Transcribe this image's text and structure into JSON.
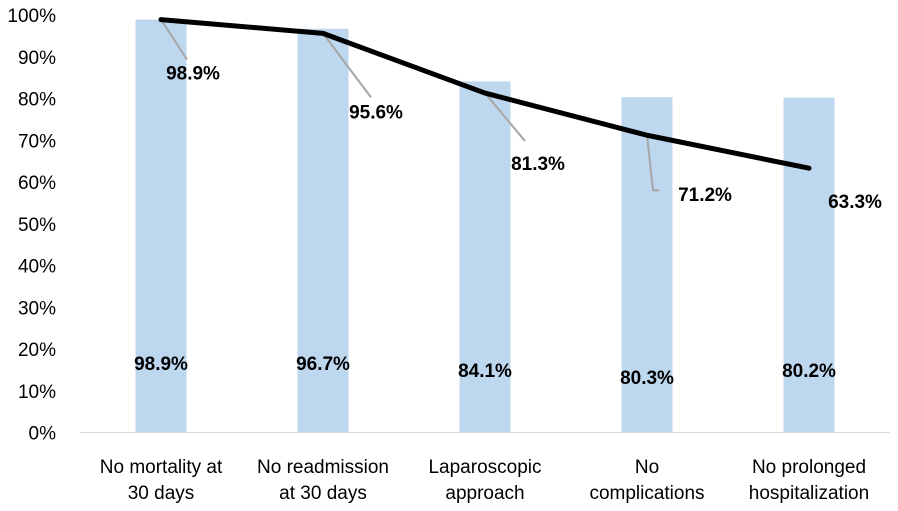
{
  "chart_data": {
    "type": "bar",
    "categories": [
      [
        "No mortality at",
        "30 days"
      ],
      [
        "No readmission",
        "at 30 days"
      ],
      [
        "Laparoscopic",
        "approach"
      ],
      [
        "No",
        "complications"
      ],
      [
        "No prolonged",
        "hospitalization"
      ]
    ],
    "series": [
      {
        "type": "bar",
        "values": [
          98.9,
          96.7,
          84.1,
          80.3,
          80.2
        ],
        "data_labels": [
          "98.9%",
          "96.7%",
          "84.1%",
          "80.3%",
          "80.2%"
        ],
        "color": "#bdd7ee"
      },
      {
        "type": "line",
        "values": [
          98.9,
          95.6,
          81.3,
          71.2,
          63.3
        ],
        "data_labels": [
          "98.9%",
          "95.6%",
          "81.3%",
          "71.2%",
          "63.3%"
        ],
        "color": "#000000"
      }
    ],
    "y_ticks": [
      "0%",
      "10%",
      "20%",
      "30%",
      "40%",
      "50%",
      "60%",
      "70%",
      "80%",
      "90%",
      "100%"
    ],
    "ylim": [
      0,
      100
    ],
    "grid": false,
    "legend": "none"
  }
}
